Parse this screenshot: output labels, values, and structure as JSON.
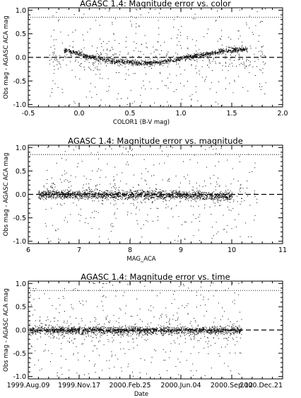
{
  "chart_data": [
    {
      "type": "scatter",
      "title": "AGASC 1.4: Magnitude error vs. color",
      "xlabel": "COLOR1 (B-V mag)",
      "ylabel": "Obs mag - AGASC ACA mag",
      "xlim": [
        -0.5,
        2.0
      ],
      "ylim": [
        -1.05,
        1.05
      ],
      "xticks": [
        "-0.5",
        "0.0",
        "0.5",
        "1.0",
        "1.5",
        "2.0"
      ],
      "xtick_values": [
        -0.5,
        0.0,
        0.5,
        1.0,
        1.5,
        2.0
      ],
      "yticks": [
        "-1.0",
        "-0.5",
        "0.0",
        "0.5",
        "1.0"
      ],
      "ytick_values": [
        -1.0,
        -0.5,
        0.0,
        0.5,
        1.0
      ],
      "hlines": [
        {
          "y": 0.0,
          "style": "dashed"
        },
        {
          "y": 0.85,
          "style": "dotted"
        }
      ],
      "trend": {
        "description": "dense band of points following a wave in y versus x",
        "points": [
          [
            -0.12,
            0.15
          ],
          [
            0.1,
            0.02
          ],
          [
            0.3,
            -0.06
          ],
          [
            0.5,
            -0.1
          ],
          [
            0.7,
            -0.12
          ],
          [
            0.85,
            -0.08
          ],
          [
            0.95,
            -0.05
          ],
          [
            1.05,
            0.0
          ],
          [
            1.2,
            0.05
          ],
          [
            1.4,
            0.14
          ],
          [
            1.6,
            0.18
          ]
        ],
        "x_range": [
          -0.15,
          1.65
        ],
        "spread": 0.07,
        "count": 1200
      },
      "outliers": {
        "x_range": [
          -0.3,
          1.85
        ],
        "y_range": [
          -1.05,
          1.05
        ],
        "count": 600
      }
    },
    {
      "type": "scatter",
      "title": "AGASC 1.4: Magnitude error vs. magnitude",
      "xlabel": "MAG_ACA",
      "ylabel": "Obs mag - AGASC ACA mag",
      "xlim": [
        6.0,
        11.0
      ],
      "ylim": [
        -1.05,
        1.05
      ],
      "xticks": [
        "6",
        "7",
        "8",
        "9",
        "10",
        "11"
      ],
      "xtick_values": [
        6,
        7,
        8,
        9,
        10,
        11
      ],
      "yticks": [
        "-1.0",
        "-0.5",
        "0.0",
        "0.5",
        "1.0"
      ],
      "ytick_values": [
        -1.0,
        -0.5,
        0.0,
        0.5,
        1.0
      ],
      "hlines": [
        {
          "y": 0.0,
          "style": "dashed"
        },
        {
          "y": 0.85,
          "style": "dotted"
        }
      ],
      "trend": {
        "description": "points clustered about zero, spreading wider at faint magnitudes",
        "points": [
          [
            6.3,
            0.0
          ],
          [
            7.5,
            0.0
          ],
          [
            8.5,
            0.0
          ],
          [
            9.2,
            -0.02
          ],
          [
            9.9,
            -0.03
          ]
        ],
        "x_range": [
          6.2,
          10.0
        ],
        "spread": 0.12,
        "count": 1600
      },
      "outliers": {
        "x_range": [
          6.3,
          10.5
        ],
        "y_range": [
          -1.0,
          1.05
        ],
        "count": 500
      }
    },
    {
      "type": "scatter",
      "title": "AGASC 1.4: Magnitude error vs. time",
      "xlabel": "Date",
      "ylabel": "Obs mag - AGASC ACA mag",
      "xlim": [
        "1999-08-09",
        "2000-12-21"
      ],
      "ylim": [
        -1.05,
        1.05
      ],
      "xticks": [
        "1999.Aug.09",
        "1999.Nov.17",
        "2000.Feb.25",
        "2000.Jun.04",
        "2000.Sep.12",
        "2000.Dec.21"
      ],
      "xtick_values": [
        "1999-08-09",
        "1999-11-17",
        "2000-02-25",
        "2000-06-04",
        "2000-09-12",
        "2000-12-21"
      ],
      "yticks": [
        "-1.0",
        "-0.5",
        "0.0",
        "0.5",
        "1.0"
      ],
      "ytick_values": [
        -1.0,
        -0.5,
        0.0,
        0.5,
        1.0
      ],
      "hlines": [
        {
          "y": 0.0,
          "style": "dashed"
        },
        {
          "y": 0.85,
          "style": "dotted"
        }
      ],
      "trend": {
        "description": "points clustered about zero across the whole date range, in vertical streaks",
        "points": [
          [
            "1999-08-09",
            0.0
          ],
          [
            "2000-10-01",
            0.0
          ]
        ],
        "x_range": [
          "1999-08-09",
          "2000-10-01"
        ],
        "spread": 0.1,
        "count": 1600
      },
      "outliers": {
        "x_range": [
          "1999-08-09",
          "2000-10-01"
        ],
        "y_range": [
          -1.05,
          1.05
        ],
        "count": 600
      }
    }
  ]
}
